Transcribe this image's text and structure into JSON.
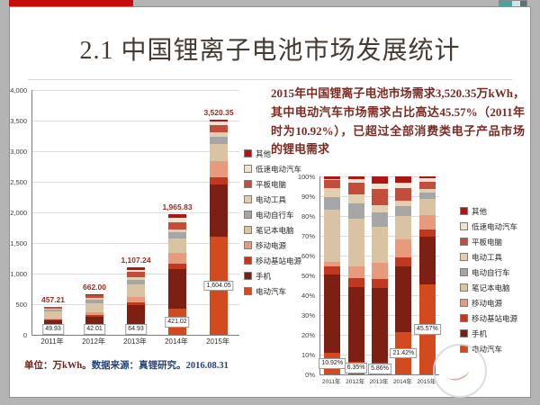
{
  "chrome": {
    "top_strip_color": "#c50d0d"
  },
  "slide": {
    "title": "2.1 中国锂离子电池市场发展统计",
    "description": "2015年中国锂离子电池市场需求3,520.35万kWh，其中电动汽车市场需求占比高达45.57%（2011年时为10.92%），已超过全部消费类电子产品市场的锂电需求",
    "footnote_unit": "单位：万kWh。",
    "footnote_source": "数据来源：真锂研究。2016.08.31"
  },
  "chart_data": [
    {
      "type": "bar",
      "stacked": true,
      "title": "",
      "xlabel": "",
      "ylabel": "",
      "categories": [
        "2011年",
        "2012年",
        "2013年",
        "2014年",
        "2015年"
      ],
      "series": [
        {
          "name": "电动汽车",
          "color": "#d24a1d",
          "values": [
            49.93,
            42.01,
            64.93,
            421.02,
            1604.05
          ]
        },
        {
          "name": "手机",
          "color": "#7e1f14",
          "values": [
            180,
            250,
            420,
            650,
            850
          ]
        },
        {
          "name": "移动基站电源",
          "color": "#c0391f",
          "values": [
            20,
            30,
            50,
            90,
            120
          ]
        },
        {
          "name": "移动电源",
          "color": "#e79a7c",
          "values": [
            10,
            40,
            90,
            180,
            260
          ]
        },
        {
          "name": "笔记本电脑",
          "color": "#d9c3a3",
          "values": [
            120,
            160,
            200,
            230,
            280
          ]
        },
        {
          "name": "电动自行车",
          "color": "#a6a6a6",
          "values": [
            30,
            50,
            80,
            100,
            120
          ]
        },
        {
          "name": "电动工具",
          "color": "#e2cfb0",
          "values": [
            20,
            30,
            40,
            55,
            70
          ]
        },
        {
          "name": "平板电脑",
          "color": "#c24d3a",
          "values": [
            20,
            40,
            90,
            120,
            130
          ]
        },
        {
          "name": "低速电动汽车",
          "color": "#efe3cf",
          "values": [
            2,
            10,
            30,
            60,
            50
          ]
        },
        {
          "name": "其他",
          "color": "#b01513",
          "values": [
            5.28,
            9.99,
            42.31,
            59.81,
            36.3
          ]
        }
      ],
      "totals": [
        "457.21",
        "662.00",
        "1,107.24",
        "1,965.83",
        "3,520.35"
      ],
      "ev_labels": [
        "49.93",
        "42.01",
        "64.93",
        "421.02",
        "1,604.05"
      ],
      "ylim": [
        0,
        4000
      ],
      "yticks": [
        "4,000",
        "3,500",
        "3,000",
        "2,500",
        "2,000",
        "1,500",
        "1,000",
        "500",
        "0"
      ],
      "grid": true,
      "legend_position": "right"
    },
    {
      "type": "bar",
      "stacked": true,
      "percent": true,
      "title": "",
      "categories": [
        "2011年",
        "2012年",
        "2013年",
        "2014年",
        "2015年"
      ],
      "note": "same series as chart 1 normalized to 100%",
      "ev_share_labels": [
        "10.92%",
        "6.35%",
        "5.86%",
        "21.42%",
        "45.57%"
      ],
      "ylim": [
        0,
        100
      ],
      "yticks": [
        "100%",
        "90%",
        "80%",
        "70%",
        "60%",
        "50%",
        "40%",
        "30%",
        "20%",
        "10%",
        "0%"
      ],
      "grid": true,
      "legend_position": "right"
    }
  ],
  "legend_order_top_to_bottom": [
    "其他",
    "低速电动汽车",
    "平板电脑",
    "电动工具",
    "电动自行车",
    "笔记本电脑",
    "移动电源",
    "移动基站电源",
    "手机",
    "电动汽车"
  ]
}
